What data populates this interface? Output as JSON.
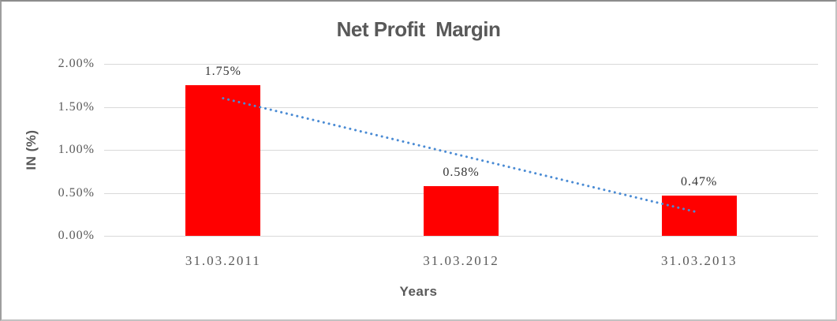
{
  "chart_data": {
    "type": "bar",
    "title": "Net Profit  Margin",
    "xlabel": "Years",
    "ylabel": "IN (%)",
    "categories": [
      "31.03.2011",
      "31.03.2012",
      "31.03.2013"
    ],
    "values": [
      1.75,
      0.58,
      0.47
    ],
    "data_labels": [
      "1.75%",
      "0.58%",
      "0.47%"
    ],
    "y_ticks": [
      {
        "label": "2.00%",
        "value": 2.0
      },
      {
        "label": "1.50%",
        "value": 1.5
      },
      {
        "label": "1.00%",
        "value": 1.0
      },
      {
        "label": "0.50%",
        "value": 0.5
      },
      {
        "label": "0.00%",
        "value": 0.0
      }
    ],
    "ylim": [
      0,
      2.0
    ],
    "grid": true,
    "legend": "none",
    "trendline": {
      "style": "dotted",
      "start_value": 1.6,
      "end_value": 0.27
    },
    "colors": {
      "bar": "#ff0000",
      "trendline": "#4a8bd4",
      "gridline": "#d9d9d9",
      "title_text": "#595959",
      "axis_title_text": "#595959",
      "tick_text": "#595959",
      "data_label_text": "#333333",
      "plot_background": "#ffffff"
    }
  }
}
